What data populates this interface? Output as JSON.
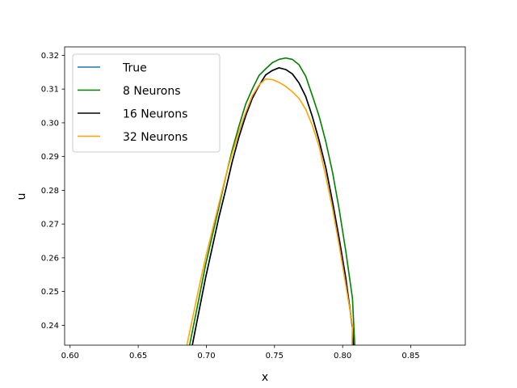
{
  "chart_data": {
    "type": "line",
    "title": "",
    "xlabel": "x",
    "ylabel": "u",
    "xlim": [
      0.596,
      0.89
    ],
    "ylim": [
      0.2341,
      0.3225
    ],
    "xticks": [
      0.6,
      0.65,
      0.7,
      0.75,
      0.8,
      0.85
    ],
    "xtick_labels": [
      "0.60",
      "0.65",
      "0.70",
      "0.75",
      "0.80",
      "0.85"
    ],
    "yticks": [
      0.24,
      0.25,
      0.26,
      0.27,
      0.28,
      0.29,
      0.3,
      0.31,
      0.32
    ],
    "ytick_labels": [
      "0.24",
      "0.25",
      "0.26",
      "0.27",
      "0.28",
      "0.29",
      "0.30",
      "0.31",
      "0.32"
    ],
    "grid": false,
    "legend_position": "upper-left",
    "series": [
      {
        "name": "True",
        "color": "#1f77b4",
        "x": [
          0.6897,
          0.6945,
          0.6994,
          0.7043,
          0.7092,
          0.7141,
          0.719,
          0.7239,
          0.7288,
          0.7337,
          0.7386,
          0.7435,
          0.7484,
          0.7533,
          0.7582,
          0.7631,
          0.768,
          0.7729,
          0.7778,
          0.7827,
          0.7876,
          0.7925,
          0.7974,
          0.8023,
          0.8072,
          0.8079
        ],
        "y": [
          0.2341,
          0.244,
          0.254,
          0.263,
          0.272,
          0.28,
          0.2885,
          0.2958,
          0.302,
          0.3072,
          0.311,
          0.3142,
          0.3155,
          0.3163,
          0.3158,
          0.3145,
          0.3118,
          0.3078,
          0.3018,
          0.2948,
          0.2868,
          0.2768,
          0.2658,
          0.254,
          0.2393,
          0.2341
        ]
      },
      {
        "name": "8 Neurons",
        "color": "#008000",
        "x": [
          0.6877,
          0.6945,
          0.6994,
          0.7043,
          0.7092,
          0.7141,
          0.719,
          0.7239,
          0.7288,
          0.7337,
          0.7386,
          0.7435,
          0.7484,
          0.7533,
          0.7582,
          0.7631,
          0.768,
          0.7729,
          0.7778,
          0.7827,
          0.7876,
          0.7925,
          0.7974,
          0.8023,
          0.8072,
          0.8089
        ],
        "y": [
          0.2341,
          0.2478,
          0.2578,
          0.2665,
          0.275,
          0.2838,
          0.292,
          0.299,
          0.3055,
          0.31,
          0.314,
          0.316,
          0.3178,
          0.3188,
          0.3192,
          0.3188,
          0.3172,
          0.3138,
          0.308,
          0.302,
          0.2945,
          0.2855,
          0.2745,
          0.262,
          0.248,
          0.2341
        ]
      },
      {
        "name": "16 Neurons",
        "color": "#000000",
        "x": [
          0.6897,
          0.6945,
          0.6994,
          0.7043,
          0.7092,
          0.7141,
          0.719,
          0.7239,
          0.7288,
          0.7337,
          0.7386,
          0.7435,
          0.7484,
          0.7533,
          0.7582,
          0.7631,
          0.768,
          0.7729,
          0.7778,
          0.7827,
          0.7876,
          0.7925,
          0.7974,
          0.8023,
          0.8072,
          0.8079
        ],
        "y": [
          0.2341,
          0.244,
          0.254,
          0.263,
          0.272,
          0.28,
          0.2885,
          0.2958,
          0.302,
          0.3072,
          0.311,
          0.3142,
          0.3155,
          0.3163,
          0.3158,
          0.3145,
          0.3118,
          0.3078,
          0.3018,
          0.2948,
          0.2868,
          0.2768,
          0.2658,
          0.254,
          0.2393,
          0.2341
        ]
      },
      {
        "name": "32 Neurons",
        "color": "#ffa500",
        "x": [
          0.6857,
          0.6945,
          0.6994,
          0.7043,
          0.7092,
          0.7141,
          0.719,
          0.7239,
          0.7288,
          0.7337,
          0.7386,
          0.7435,
          0.7484,
          0.7533,
          0.7582,
          0.7631,
          0.768,
          0.7729,
          0.7778,
          0.7827,
          0.7876,
          0.7925,
          0.7974,
          0.8023,
          0.8072,
          0.8069
        ],
        "y": [
          0.2341,
          0.251,
          0.26,
          0.268,
          0.276,
          0.284,
          0.291,
          0.2975,
          0.303,
          0.308,
          0.3112,
          0.313,
          0.3128,
          0.312,
          0.3108,
          0.3092,
          0.3072,
          0.304,
          0.2992,
          0.293,
          0.2842,
          0.2748,
          0.2638,
          0.252,
          0.24,
          0.2341
        ]
      }
    ]
  }
}
